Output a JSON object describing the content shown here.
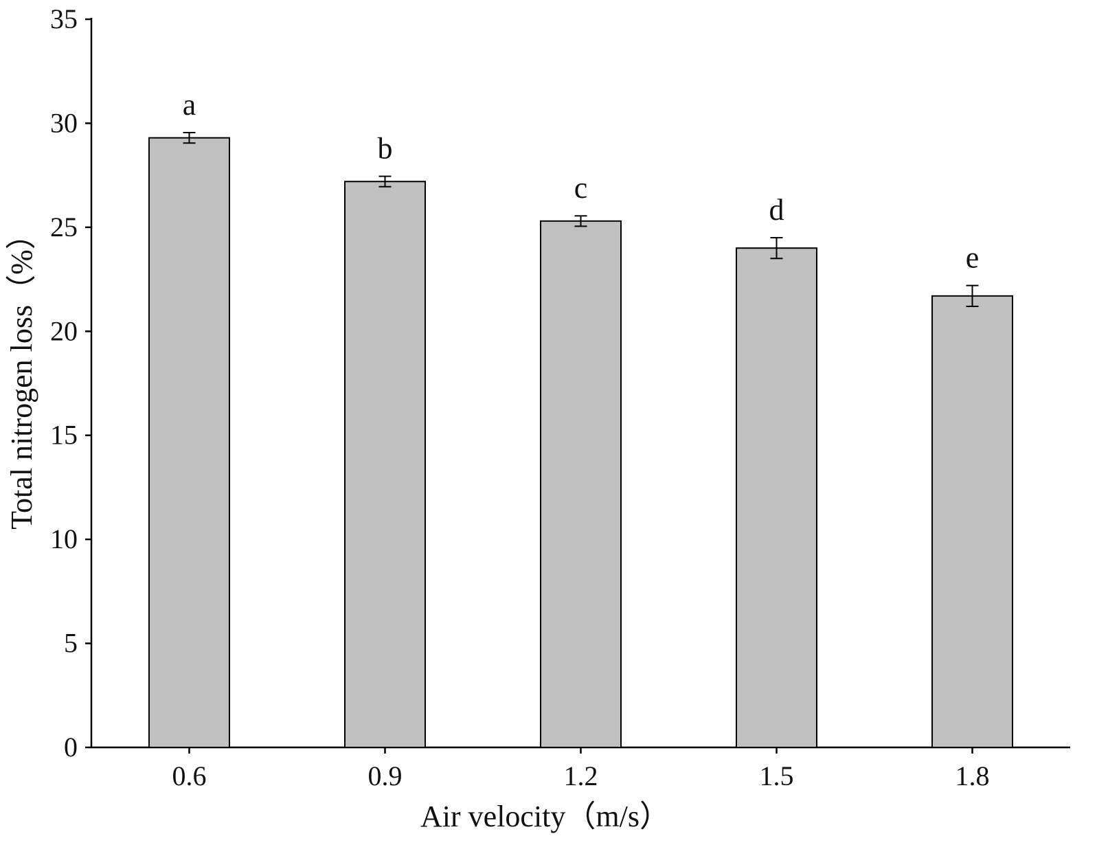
{
  "chart_data": {
    "type": "bar",
    "categories": [
      "0.6",
      "0.9",
      "1.2",
      "1.5",
      "1.8"
    ],
    "values": [
      29.3,
      27.2,
      25.3,
      24.0,
      21.7
    ],
    "error": [
      0.25,
      0.25,
      0.25,
      0.5,
      0.5
    ],
    "significance_labels": [
      "a",
      "b",
      "c",
      "d",
      "e"
    ],
    "xlabel": "Air velocity（m/s）",
    "ylabel": "Total nitrogen loss（%）",
    "ylim": [
      0,
      35
    ],
    "yticks": [
      0,
      5,
      10,
      15,
      20,
      25,
      30,
      35
    ],
    "grid": false,
    "legend": "none",
    "bar_color": "#c0c0c0",
    "bar_edge_color": "#000000"
  }
}
